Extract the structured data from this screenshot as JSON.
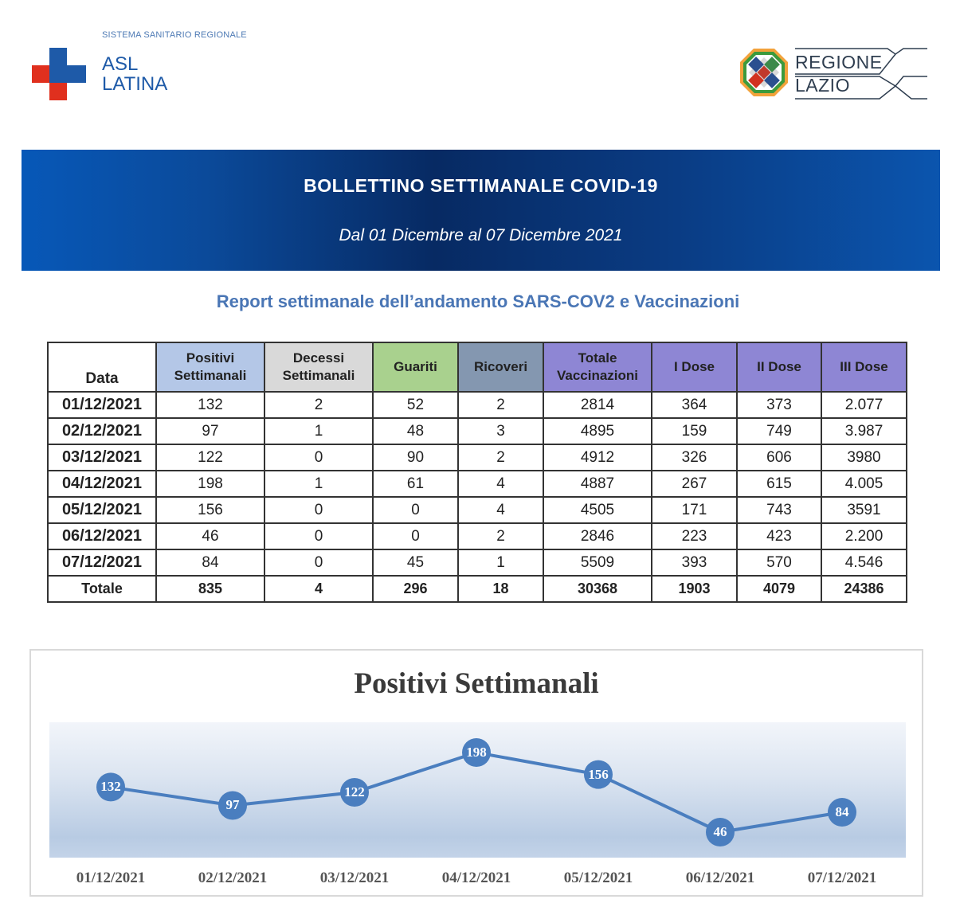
{
  "header": {
    "asl": {
      "subtitle": "SISTEMA SANITARIO REGIONALE",
      "name_line1": "ASL",
      "name_line2": "LATINA",
      "colors": {
        "blue": "#1e5aa8",
        "red": "#e0301e"
      }
    },
    "lazio": {
      "line1": "REGIONE",
      "line2": "LAZIO"
    }
  },
  "banner": {
    "title": "BOLLETTINO SETTIMANALE COVID-19",
    "subtitle": "Dal 01 Dicembre al 07 Dicembre 2021"
  },
  "report_title": "Report settimanale dell’andamento SARS-COV2 e Vaccinazioni",
  "table": {
    "headers": [
      "Data",
      "Positivi Settimanali",
      "Decessi Settimanali",
      "Guariti",
      "Ricoveri",
      "Totale Vaccinazioni",
      "I Dose",
      "II Dose",
      "III Dose"
    ],
    "header_lines": {
      "positivi": [
        "Positivi",
        "Settimanali"
      ],
      "decessi": [
        "Decessi",
        "Settimanali"
      ],
      "vaccinazioni": [
        "Totale",
        "Vaccinazioni"
      ]
    },
    "rows": [
      [
        "01/12/2021",
        "132",
        "2",
        "52",
        "2",
        "2814",
        "364",
        "373",
        "2.077"
      ],
      [
        "02/12/2021",
        "97",
        "1",
        "48",
        "3",
        "4895",
        "159",
        "749",
        "3.987"
      ],
      [
        "03/12/2021",
        "122",
        "0",
        "90",
        "2",
        "4912",
        "326",
        "606",
        "3980"
      ],
      [
        "04/12/2021",
        "198",
        "1",
        "61",
        "4",
        "4887",
        "267",
        "615",
        "4.005"
      ],
      [
        "05/12/2021",
        "156",
        "0",
        "0",
        "4",
        "4505",
        "171",
        "743",
        "3591"
      ],
      [
        "06/12/2021",
        "46",
        "0",
        "0",
        "2",
        "2846",
        "223",
        "423",
        "2.200"
      ],
      [
        "07/12/2021",
        "84",
        "0",
        "45",
        "1",
        "5509",
        "393",
        "570",
        "4.546"
      ]
    ],
    "total": [
      "Totale",
      "835",
      "4",
      "296",
      "18",
      "30368",
      "1903",
      "4079",
      "24386"
    ],
    "header_colors": {
      "positivi": "#b4c7e7",
      "decessi": "#d9d9d9",
      "guariti": "#a9d18e",
      "ricoveri": "#8497b0",
      "vaccinazioni": "#8e86d4"
    }
  },
  "chart_data": {
    "type": "line",
    "title": "Positivi Settimanali",
    "categories": [
      "01/12/2021",
      "02/12/2021",
      "03/12/2021",
      "04/12/2021",
      "05/12/2021",
      "06/12/2021",
      "07/12/2021"
    ],
    "values": [
      132,
      97,
      122,
      198,
      156,
      46,
      84
    ],
    "xlabel": "",
    "ylabel": "",
    "data_labels": true,
    "grid": false,
    "legend": "none",
    "series_color": "#4a7ebf"
  }
}
